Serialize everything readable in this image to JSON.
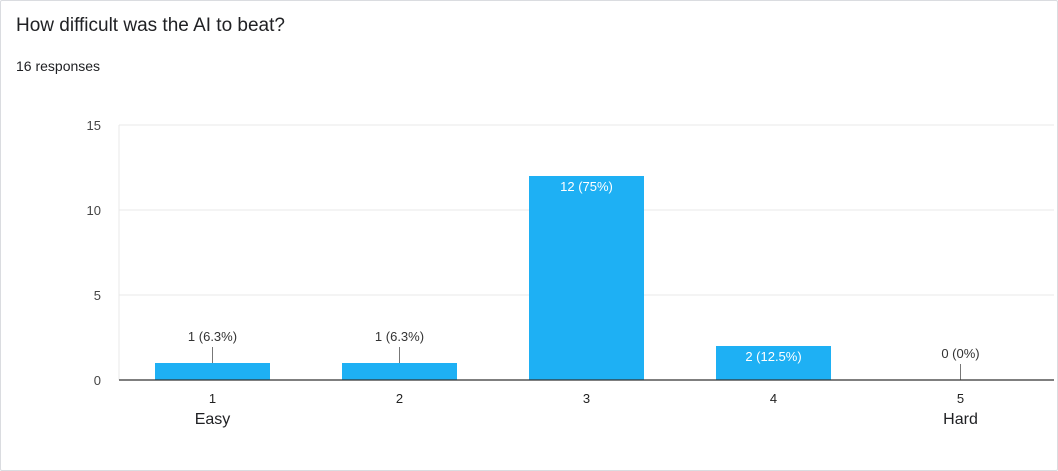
{
  "header": {
    "title": "How difficult was the AI to beat?",
    "responses": "16 responses"
  },
  "chart_data": {
    "type": "bar",
    "categories": [
      "1",
      "2",
      "3",
      "4",
      "5"
    ],
    "category_sublabels": [
      "Easy",
      "",
      "",
      "",
      "Hard"
    ],
    "values": [
      1,
      1,
      12,
      2,
      0
    ],
    "data_labels": [
      "1 (6.3%)",
      "1 (6.3%)",
      "12 (75%)",
      "2 (12.5%)",
      "0 (0%)"
    ],
    "yticks": [
      0,
      5,
      10,
      15
    ],
    "ylim": [
      0,
      15
    ],
    "grid": true,
    "title": "",
    "xlabel": "",
    "ylabel": "",
    "bar_color": "#1eb0f4",
    "grid_color": "#e8e8e8",
    "axis_color": "#333333"
  }
}
